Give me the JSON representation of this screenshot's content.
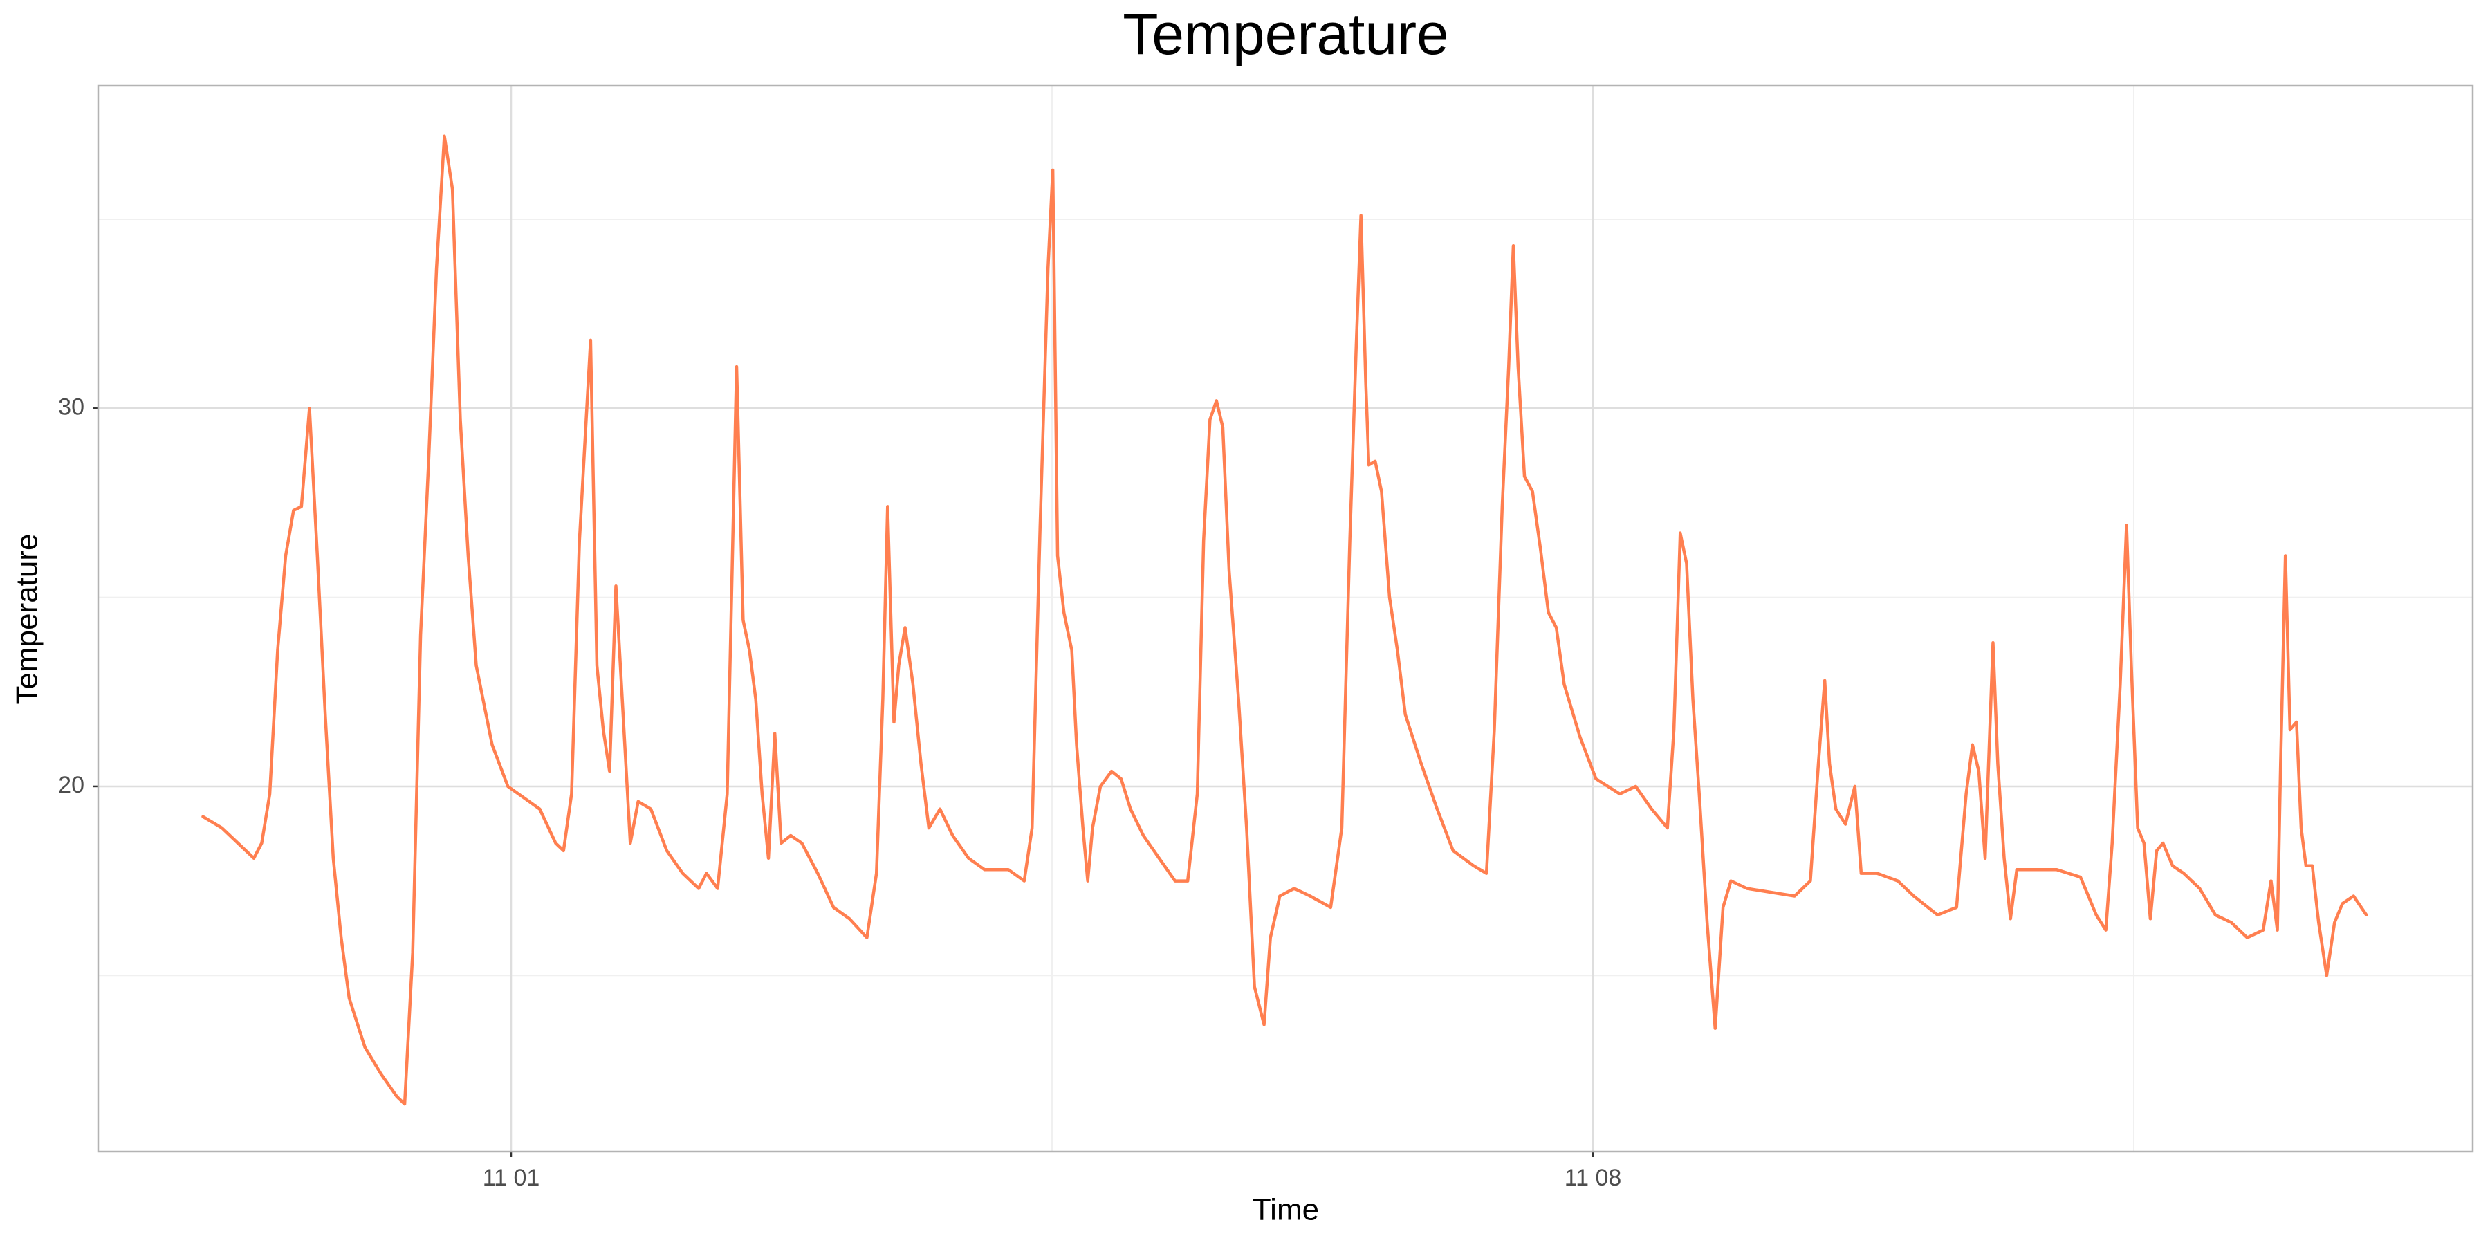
{
  "chart_data": {
    "type": "line",
    "title": "Temperature",
    "x_label": "Time",
    "y_label": "Temperature",
    "color": "#ff7f50",
    "grid": true,
    "xlim": [
      -1.672,
      13.693
    ],
    "xticks": [
      {
        "value": 1,
        "label": "11 01"
      },
      {
        "value": 8,
        "label": "11 08"
      }
    ],
    "xminorticks": [
      4.5,
      11.5
    ],
    "ylim": [
      10.34,
      38.53
    ],
    "yticks": [
      20,
      30
    ],
    "yminorticks": [
      15,
      25,
      35
    ],
    "x": [
      -0.994,
      -0.871,
      -0.768,
      -0.665,
      -0.614,
      -0.562,
      -0.511,
      -0.459,
      -0.408,
      -0.357,
      -0.305,
      -0.254,
      -0.203,
      -0.151,
      -0.1,
      -0.048,
      0.054,
      0.157,
      0.26,
      0.311,
      0.363,
      0.414,
      0.466,
      0.517,
      0.568,
      0.62,
      0.671,
      0.722,
      0.774,
      0.877,
      0.979,
      1.082,
      1.185,
      1.288,
      1.339,
      1.391,
      1.442,
      1.514,
      1.555,
      1.596,
      1.637,
      1.678,
      1.719,
      1.771,
      1.822,
      1.904,
      2.007,
      2.11,
      2.213,
      2.264,
      2.336,
      2.398,
      2.459,
      2.501,
      2.542,
      2.583,
      2.624,
      2.665,
      2.706,
      2.747,
      2.809,
      2.881,
      2.984,
      3.086,
      3.189,
      3.302,
      3.364,
      3.405,
      3.436,
      3.477,
      3.508,
      3.549,
      3.6,
      3.652,
      3.703,
      3.775,
      3.857,
      3.96,
      4.063,
      4.217,
      4.32,
      4.371,
      4.423,
      4.474,
      4.505,
      4.536,
      4.577,
      4.628,
      4.659,
      4.7,
      4.731,
      4.762,
      4.813,
      4.885,
      4.947,
      5.008,
      5.091,
      5.193,
      5.296,
      5.378,
      5.44,
      5.481,
      5.522,
      5.564,
      5.605,
      5.646,
      5.707,
      5.759,
      5.81,
      5.872,
      5.913,
      5.974,
      6.067,
      6.17,
      6.303,
      6.375,
      6.427,
      6.468,
      6.499,
      6.53,
      6.55,
      6.591,
      6.632,
      6.684,
      6.735,
      6.786,
      6.889,
      6.992,
      7.095,
      7.228,
      7.311,
      7.362,
      7.413,
      7.455,
      7.485,
      7.516,
      7.557,
      7.609,
      7.66,
      7.712,
      7.763,
      7.814,
      7.917,
      8.02,
      8.174,
      8.277,
      8.38,
      8.482,
      8.524,
      8.565,
      8.606,
      8.647,
      8.688,
      8.739,
      8.791,
      8.842,
      8.893,
      8.996,
      9.15,
      9.305,
      9.407,
      9.459,
      9.5,
      9.531,
      9.572,
      9.634,
      9.695,
      9.736,
      9.839,
      9.973,
      10.076,
      10.23,
      10.353,
      10.415,
      10.456,
      10.497,
      10.538,
      10.589,
      10.62,
      10.661,
      10.702,
      10.743,
      10.846,
      11.0,
      11.155,
      11.257,
      11.319,
      11.36,
      11.412,
      11.453,
      11.484,
      11.525,
      11.566,
      11.607,
      11.648,
      11.689,
      11.751,
      11.823,
      11.926,
      12.028,
      12.131,
      12.234,
      12.337,
      12.388,
      12.429,
      12.45,
      12.481,
      12.511,
      12.553,
      12.583,
      12.614,
      12.655,
      12.696,
      12.748,
      12.799,
      12.85,
      12.922,
      13.005
    ],
    "values": [
      19.2,
      18.9,
      18.5,
      18.1,
      18.5,
      19.8,
      23.6,
      26.1,
      27.3,
      27.4,
      30.0,
      26.1,
      21.9,
      18.1,
      16.0,
      14.4,
      13.1,
      12.4,
      11.8,
      11.6,
      15.6,
      24.0,
      28.6,
      33.7,
      37.2,
      35.8,
      29.7,
      26.1,
      23.2,
      21.1,
      20.0,
      19.7,
      19.4,
      18.5,
      18.3,
      19.8,
      26.5,
      31.8,
      23.2,
      21.5,
      20.4,
      25.3,
      22.3,
      18.5,
      19.6,
      19.4,
      18.3,
      17.7,
      17.3,
      17.7,
      17.3,
      19.8,
      31.1,
      24.4,
      23.6,
      22.3,
      19.8,
      18.1,
      21.4,
      18.5,
      18.7,
      18.5,
      17.7,
      16.8,
      16.5,
      16.0,
      17.7,
      22.3,
      27.4,
      21.7,
      23.2,
      24.2,
      22.7,
      20.6,
      18.9,
      19.4,
      18.7,
      18.1,
      17.8,
      17.8,
      17.5,
      18.9,
      26.9,
      33.7,
      36.3,
      26.1,
      24.6,
      23.6,
      21.1,
      18.9,
      17.5,
      18.9,
      20.0,
      20.4,
      20.2,
      19.4,
      18.7,
      18.1,
      17.5,
      17.5,
      19.8,
      26.5,
      29.7,
      30.2,
      29.5,
      25.7,
      22.3,
      18.9,
      14.7,
      13.7,
      16.0,
      17.1,
      17.3,
      17.1,
      16.8,
      18.9,
      26.5,
      31.6,
      35.1,
      30.7,
      28.5,
      28.6,
      27.8,
      25.0,
      23.6,
      21.9,
      20.6,
      19.4,
      18.3,
      17.9,
      17.7,
      21.5,
      27.4,
      31.1,
      34.3,
      31.1,
      28.2,
      27.8,
      26.3,
      24.6,
      24.2,
      22.7,
      21.3,
      20.2,
      19.8,
      20.0,
      19.4,
      18.9,
      21.5,
      26.7,
      25.9,
      22.3,
      19.8,
      16.4,
      13.6,
      16.8,
      17.5,
      17.3,
      17.2,
      17.1,
      17.5,
      20.6,
      22.8,
      20.6,
      19.4,
      19.0,
      20.0,
      17.7,
      17.7,
      17.5,
      17.1,
      16.6,
      16.8,
      19.8,
      21.1,
      20.4,
      18.1,
      23.8,
      20.6,
      18.1,
      16.5,
      17.8,
      17.8,
      17.8,
      17.6,
      16.6,
      16.2,
      18.5,
      22.7,
      26.9,
      23.2,
      18.9,
      18.5,
      16.5,
      18.3,
      18.5,
      17.9,
      17.7,
      17.3,
      16.6,
      16.4,
      16.0,
      16.2,
      17.5,
      16.2,
      20.6,
      26.1,
      21.5,
      21.7,
      18.9,
      17.9,
      17.9,
      16.4,
      15.0,
      16.4,
      16.9,
      17.1,
      16.6
    ]
  }
}
